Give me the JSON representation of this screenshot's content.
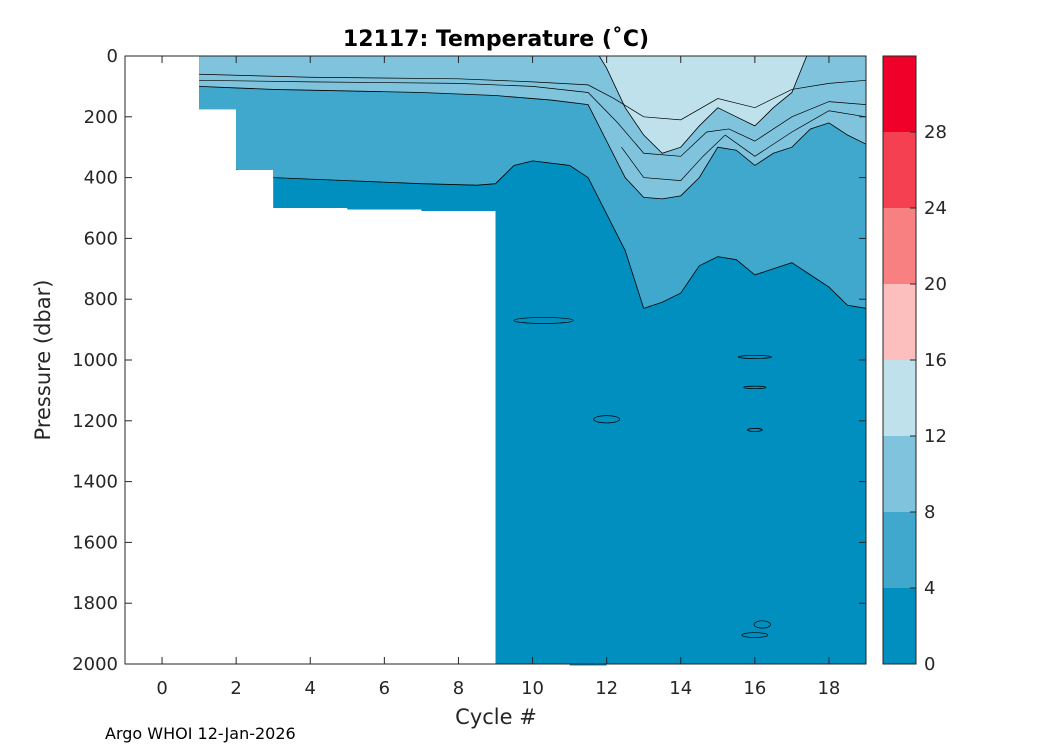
{
  "chart_data": {
    "type": "contour",
    "title": "12117:  Temperature (˚C)",
    "xlabel": "Cycle #",
    "ylabel": "Pressure (dbar)",
    "xlim": [
      -1,
      19
    ],
    "ylim": [
      2000,
      0
    ],
    "x_ticks": [
      0,
      2,
      4,
      6,
      8,
      10,
      12,
      14,
      16,
      18
    ],
    "y_ticks": [
      0,
      200,
      400,
      600,
      800,
      1000,
      1200,
      1400,
      1600,
      1800,
      2000
    ],
    "colorbar": {
      "range": [
        0,
        32
      ],
      "ticks": [
        0,
        4,
        8,
        12,
        16,
        20,
        24,
        28
      ],
      "levels": [
        {
          "from": 0,
          "to": 4,
          "color": "#008fbf"
        },
        {
          "from": 4,
          "to": 8,
          "color": "#3fa8cc"
        },
        {
          "from": 8,
          "to": 12,
          "color": "#7fc3dd"
        },
        {
          "from": 12,
          "to": 16,
          "color": "#bfe1ec"
        },
        {
          "from": 16,
          "to": 20,
          "color": "#fcbfbd"
        },
        {
          "from": 20,
          "to": 24,
          "color": "#f88080"
        },
        {
          "from": 24,
          "to": 28,
          "color": "#f44050"
        },
        {
          "from": 28,
          "to": 32,
          "color": "#f00028"
        }
      ]
    },
    "profile_max_pressure": [
      {
        "cycle": 1,
        "pressure": 175
      },
      {
        "cycle": 2,
        "pressure": 375
      },
      {
        "cycle": 3,
        "pressure": 500
      },
      {
        "cycle": 4,
        "pressure": 500
      },
      {
        "cycle": 5,
        "pressure": 505
      },
      {
        "cycle": 6,
        "pressure": 505
      },
      {
        "cycle": 7,
        "pressure": 510
      },
      {
        "cycle": 8,
        "pressure": 510
      },
      {
        "cycle": 9,
        "pressure": 2000
      },
      {
        "cycle": 10,
        "pressure": 2000
      },
      {
        "cycle": 11,
        "pressure": 2005
      },
      {
        "cycle": 12,
        "pressure": 2000
      },
      {
        "cycle": 13,
        "pressure": 2000
      },
      {
        "cycle": 14,
        "pressure": 2000
      },
      {
        "cycle": 15,
        "pressure": 2000
      },
      {
        "cycle": 16,
        "pressure": 2000
      },
      {
        "cycle": 17,
        "pressure": 2000
      },
      {
        "cycle": 18,
        "pressure": 2000
      },
      {
        "cycle": 19,
        "pressure": 2000
      }
    ],
    "isotherm_4C": [
      [
        1,
        175
      ],
      [
        2,
        375
      ],
      [
        3,
        400
      ],
      [
        5,
        410
      ],
      [
        7,
        420
      ],
      [
        8.5,
        425
      ],
      [
        9,
        420
      ],
      [
        9.5,
        360
      ],
      [
        10,
        345
      ],
      [
        11,
        360
      ],
      [
        11.5,
        400
      ],
      [
        12,
        520
      ],
      [
        12.5,
        640
      ],
      [
        13,
        830
      ],
      [
        13.5,
        810
      ],
      [
        14,
        780
      ],
      [
        14.5,
        690
      ],
      [
        15,
        660
      ],
      [
        15.5,
        670
      ],
      [
        16,
        720
      ],
      [
        16.5,
        700
      ],
      [
        17,
        680
      ],
      [
        17.5,
        720
      ],
      [
        18,
        760
      ],
      [
        18.5,
        820
      ],
      [
        19,
        830
      ]
    ],
    "isotherm_8C": [
      [
        1,
        100
      ],
      [
        2,
        105
      ],
      [
        3,
        110
      ],
      [
        5,
        115
      ],
      [
        7,
        120
      ],
      [
        9,
        130
      ],
      [
        10.5,
        145
      ],
      [
        11.5,
        160
      ],
      [
        12,
        280
      ],
      [
        12.5,
        400
      ],
      [
        13,
        465
      ],
      [
        13.5,
        470
      ],
      [
        14,
        460
      ],
      [
        14.5,
        400
      ],
      [
        15,
        300
      ],
      [
        15.5,
        310
      ],
      [
        16,
        360
      ],
      [
        16.5,
        320
      ],
      [
        17,
        300
      ],
      [
        17.5,
        240
      ],
      [
        18,
        220
      ],
      [
        18.5,
        260
      ],
      [
        19,
        290
      ]
    ],
    "isotherm_12C": [
      [
        11.8,
        0
      ],
      [
        12,
        40
      ],
      [
        12.5,
        170
      ],
      [
        13,
        260
      ],
      [
        13.5,
        320
      ],
      [
        14,
        300
      ],
      [
        14.5,
        230
      ],
      [
        15,
        170
      ],
      [
        15.5,
        200
      ],
      [
        16,
        230
      ],
      [
        16.5,
        170
      ],
      [
        17,
        120
      ],
      [
        17.2,
        60
      ],
      [
        17.4,
        0
      ]
    ]
  },
  "footer": "Argo WHOI 12-Jan-2026"
}
